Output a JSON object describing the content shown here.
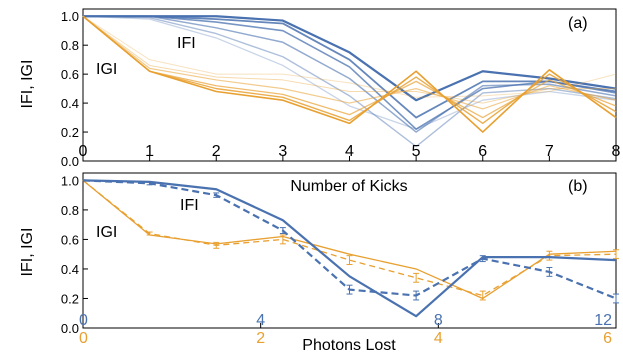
{
  "colors": {
    "blue": "#4a72b0",
    "gold": "#e8a030"
  },
  "chart_data": [
    {
      "type": "line",
      "panel_label": "(a)",
      "xlabel": "Number of Kicks",
      "ylabel": "IFI, IGI",
      "xlim": [
        0,
        8
      ],
      "ylim": [
        0,
        1.05
      ],
      "x_ticks": [
        "0",
        "1",
        "2",
        "3",
        "4",
        "5",
        "6",
        "7",
        "8"
      ],
      "y_ticks": [
        "0.0",
        "0.2",
        "0.4",
        "0.6",
        "0.8",
        "1.0"
      ],
      "annotations": {
        "F": "IFI",
        "G": "IGI"
      },
      "x": [
        0,
        1,
        2,
        3,
        4,
        5,
        6,
        7,
        8
      ],
      "blue_series": [
        {
          "values": [
            1.0,
            1.0,
            1.0,
            0.97,
            0.75,
            0.42,
            0.62,
            0.57,
            0.5
          ],
          "opacity": 1.0,
          "width": 2.2
        },
        {
          "values": [
            1.0,
            1.0,
            0.98,
            0.95,
            0.7,
            0.3,
            0.55,
            0.55,
            0.48
          ],
          "opacity": 0.85,
          "width": 1.8
        },
        {
          "values": [
            1.0,
            1.0,
            0.96,
            0.9,
            0.65,
            0.22,
            0.5,
            0.55,
            0.47
          ],
          "opacity": 0.75,
          "width": 1.6
        },
        {
          "values": [
            1.0,
            1.0,
            0.92,
            0.82,
            0.57,
            0.2,
            0.52,
            0.53,
            0.45
          ],
          "opacity": 0.6,
          "width": 1.5
        },
        {
          "values": [
            1.0,
            0.99,
            0.88,
            0.72,
            0.45,
            0.1,
            0.47,
            0.5,
            0.43
          ],
          "opacity": 0.45,
          "width": 1.4
        },
        {
          "values": [
            1.0,
            0.98,
            0.85,
            0.66,
            0.38,
            0.22,
            0.42,
            0.48,
            0.42
          ],
          "opacity": 0.3,
          "width": 1.3
        }
      ],
      "gold_series": [
        {
          "values": [
            1.0,
            0.62,
            0.48,
            0.42,
            0.26,
            0.62,
            0.2,
            0.63,
            0.3
          ],
          "opacity": 1.0,
          "width": 1.6
        },
        {
          "values": [
            1.0,
            0.62,
            0.5,
            0.44,
            0.28,
            0.58,
            0.26,
            0.6,
            0.34
          ],
          "opacity": 0.85,
          "width": 1.4
        },
        {
          "values": [
            1.0,
            0.62,
            0.52,
            0.46,
            0.32,
            0.55,
            0.3,
            0.56,
            0.38
          ],
          "opacity": 0.7,
          "width": 1.3
        },
        {
          "values": [
            1.0,
            0.64,
            0.56,
            0.5,
            0.4,
            0.5,
            0.36,
            0.52,
            0.42
          ],
          "opacity": 0.55,
          "width": 1.2
        },
        {
          "values": [
            1.0,
            0.66,
            0.58,
            0.56,
            0.48,
            0.48,
            0.4,
            0.5,
            0.5
          ],
          "opacity": 0.4,
          "width": 1.0
        },
        {
          "values": [
            1.0,
            0.7,
            0.6,
            0.6,
            0.54,
            0.44,
            0.45,
            0.48,
            0.6
          ],
          "opacity": 0.3,
          "width": 1.0
        }
      ]
    },
    {
      "type": "line",
      "panel_label": "(b)",
      "xlabel": "Photons Lost",
      "ylabel": "IFI, IGI",
      "xlim": [
        0,
        12
      ],
      "ylim": [
        0,
        1.05
      ],
      "y_ticks": [
        "0.0",
        "0.2",
        "0.4",
        "0.6",
        "0.8",
        "1.0"
      ],
      "annotations": {
        "F": "IFI",
        "G": "IGI"
      },
      "blue_axis_ticks": [
        {
          "x": 0,
          "label": "0"
        },
        {
          "x": 4,
          "label": "4"
        },
        {
          "x": 8,
          "label": "8"
        },
        {
          "x": 12,
          "label": "12"
        }
      ],
      "gold_axis_ticks": [
        {
          "x": 0,
          "label": "0"
        },
        {
          "x": 4,
          "label": "2"
        },
        {
          "x": 8,
          "label": "4"
        },
        {
          "x": 12,
          "label": "6"
        }
      ],
      "x": [
        0,
        1.5,
        3,
        4.5,
        6,
        7.5,
        9,
        10.5,
        12
      ],
      "series": [
        {
          "color": "blue",
          "style": "solid",
          "values": [
            1.0,
            0.99,
            0.94,
            0.73,
            0.35,
            0.08,
            0.48,
            0.48,
            0.46
          ]
        },
        {
          "color": "blue",
          "style": "dashed",
          "values": [
            1.0,
            0.98,
            0.9,
            0.66,
            0.26,
            0.22,
            0.47,
            0.38,
            0.2
          ],
          "errors": [
            0,
            0.01,
            0.015,
            0.02,
            0.03,
            0.03,
            0.02,
            0.03,
            0.03
          ]
        },
        {
          "color": "gold",
          "style": "solid",
          "values": [
            1.0,
            0.63,
            0.57,
            0.62,
            0.5,
            0.4,
            0.2,
            0.5,
            0.52
          ]
        },
        {
          "color": "gold",
          "style": "dashed",
          "values": [
            1.0,
            0.64,
            0.56,
            0.6,
            0.46,
            0.34,
            0.22,
            0.49,
            0.5
          ],
          "errors": [
            0,
            0.01,
            0.02,
            0.03,
            0.03,
            0.03,
            0.03,
            0.03,
            0.03
          ]
        }
      ]
    }
  ]
}
